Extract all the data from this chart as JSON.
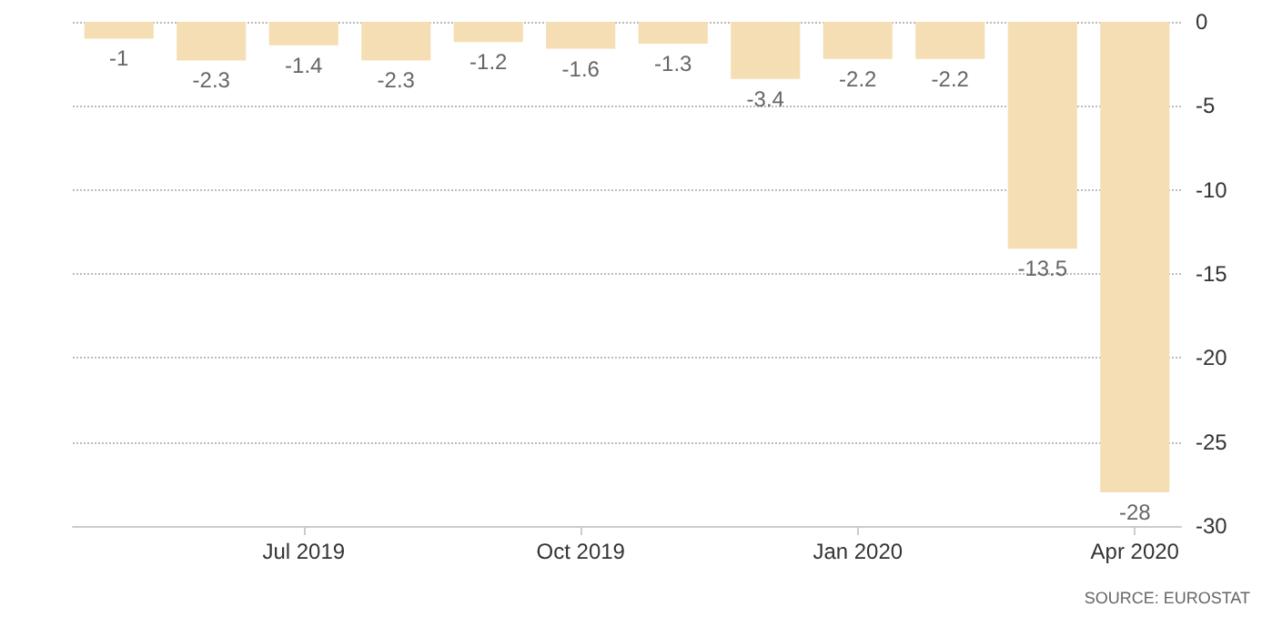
{
  "chart_data": {
    "type": "bar",
    "categories": [
      null,
      null,
      "Jul 2019",
      null,
      null,
      "Oct 2019",
      null,
      null,
      "Jan 2020",
      null,
      null,
      "Apr 2020"
    ],
    "values": [
      -1,
      -2.3,
      -1.4,
      -2.3,
      -1.2,
      -1.6,
      -1.3,
      -3.4,
      -2.2,
      -2.2,
      -13.5,
      -28
    ],
    "color": "#f5deb3",
    "ylim": [
      -30,
      0
    ],
    "yticks": [
      0,
      -5,
      -10,
      -15,
      -20,
      -25,
      -30
    ],
    "grid": "y",
    "data_labels": true,
    "annotations": [
      "SOURCE: EUROSTAT"
    ]
  }
}
